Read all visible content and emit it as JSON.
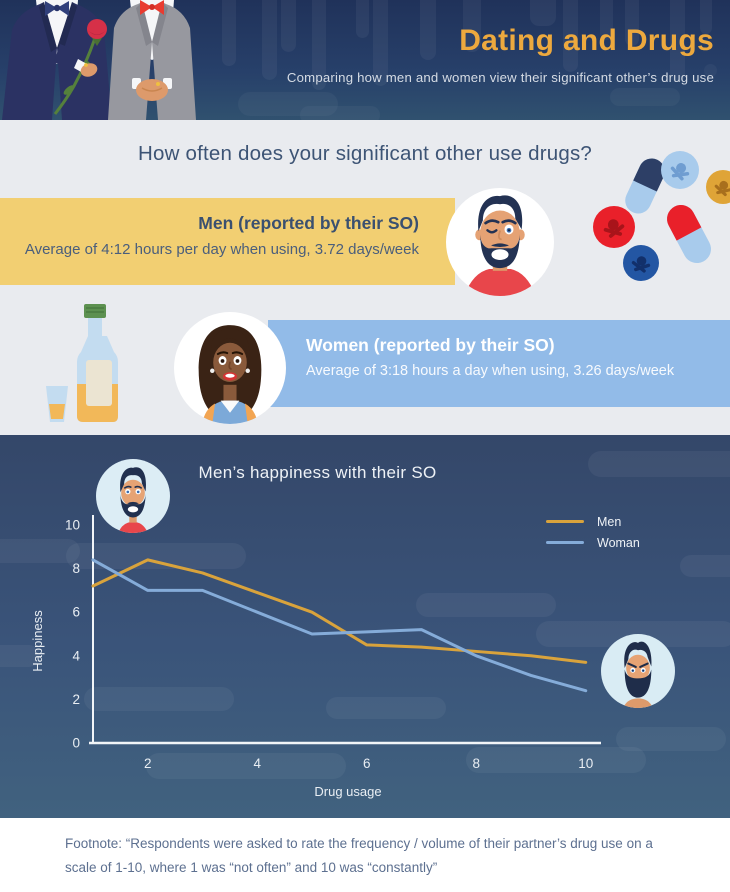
{
  "header": {
    "title": "Dating and Drugs",
    "subtitle": "Comparing how men and women view their significant other’s drug use"
  },
  "survey": {
    "heading": "How often does your significant other use drugs?",
    "men_band": {
      "title": "Men (reported by their SO)",
      "detail": "Average of 4:12 hours per day when using, 3.72 days/week"
    },
    "women_band": {
      "title": "Women (reported by their SO)",
      "detail": "Average of 3:18 hours a day when using, 3.26 days/week"
    }
  },
  "chart_data": {
    "type": "line",
    "title": "Men’s happiness with their SO",
    "xlabel": "Drug usage",
    "ylabel": "Happiness",
    "x": [
      1,
      2,
      3,
      4,
      5,
      6,
      7,
      8,
      9,
      10
    ],
    "series": [
      {
        "name": "Men",
        "color": "#d9a33c",
        "values": [
          7.2,
          8.4,
          7.8,
          6.9,
          6.0,
          4.5,
          4.4,
          4.2,
          4.0,
          3.7
        ]
      },
      {
        "name": "Woman",
        "color": "#85acd9",
        "values": [
          8.4,
          7.0,
          7.0,
          6.0,
          5.0,
          5.1,
          5.2,
          4.0,
          3.1,
          2.4
        ]
      }
    ],
    "xticks": [
      2,
      4,
      6,
      8,
      10
    ],
    "yticks": [
      0,
      2,
      4,
      6,
      8,
      10
    ],
    "xlim": [
      1,
      10.3
    ],
    "ylim": [
      0,
      10.5
    ],
    "grid": false,
    "legend_position": "upper right"
  },
  "footnote": {
    "lines": [
      "Footnote: “Respondents were asked to rate the frequency / volume of their partner’s drug use on a",
      "scale of 1-10, where 1 was “not often” and 10 was “constantly”"
    ]
  },
  "icons": {
    "grooms": "wedding-couple-illustration",
    "men_avatar": "winking-bearded-man-avatar",
    "women_avatar": "smiling-woman-avatar",
    "pills": "drug-pills-illustration",
    "bottle": "alcohol-bottle-and-shot-glass",
    "chart_happy": "happy-man-avatar",
    "chart_angry": "angry-man-avatar"
  },
  "colors": {
    "accent_orange": "#eda93e",
    "band_yellow": "#f2cf72",
    "band_blue": "#92bbe8",
    "men_line": "#d9a33c",
    "woman_line": "#85acd9",
    "header_top": "#20325a",
    "header_bottom": "#30516f",
    "chart_top": "#344769",
    "chart_bottom": "#41627f",
    "section_gray": "#e9ebef",
    "heading_text": "#3d5475",
    "footnote_text": "#5d7090"
  }
}
